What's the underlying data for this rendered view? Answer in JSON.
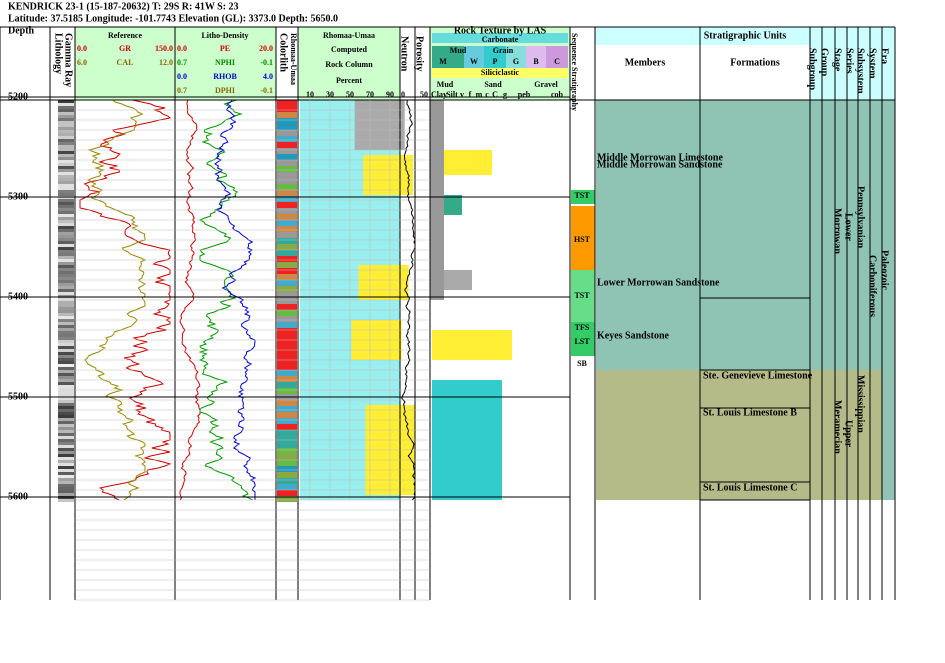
{
  "header": {
    "well": "KENDRICK 23-1 (15-187-20632) T: 29S R: 41W S: 23",
    "location": "Latitude: 37.5185 Longitude: -101.7743 Elevation (GL): 3373.0 Depth: 5650.0"
  },
  "depth_track": {
    "title": "Depth",
    "ticks": [
      5200,
      5300,
      5400,
      5500,
      5600
    ]
  },
  "lithology": {
    "title": "Lithology",
    "gamma": "Gamma Ray"
  },
  "reference": {
    "title": "Reference",
    "curves": [
      {
        "name": "GR",
        "min": "0.0",
        "max": "150.0"
      },
      {
        "name": "CAL",
        "min": "6.0",
        "max": "12.0"
      }
    ]
  },
  "litho_density": {
    "title": "Litho-Density",
    "curves": [
      {
        "name": "PE",
        "min": "0.0",
        "max": "20.0"
      },
      {
        "name": "NPHI",
        "min": "0.7",
        "max": "-0.1"
      },
      {
        "name": "RHOB",
        "min": "0.0",
        "max": "4.0"
      },
      {
        "name": "DPHI",
        "min": "0.7",
        "max": "-0.1"
      }
    ]
  },
  "colorlith": {
    "title": "Colorlith",
    "subtitle": "Rhomaa-Umaa"
  },
  "rhomaa": {
    "title": "Rhomaa-Umaa",
    "lines": [
      "Computed",
      "Rock Column",
      "Percent"
    ],
    "ticks": [
      10,
      30,
      50,
      70,
      90
    ]
  },
  "neutron": {
    "title": "Neutron",
    "min": 0,
    "max": 50
  },
  "porosity": {
    "title": "Porosity"
  },
  "rock_texture": {
    "title": "Rock Texture by LAS",
    "carbonate": "Carbonate",
    "carb_groups": [
      "Mud",
      "Grain"
    ],
    "carb_classes": [
      "M",
      "W",
      "P",
      "G",
      "B",
      "C"
    ],
    "siliciclastic": "Siliciclastic",
    "sil_groups": [
      "Mud",
      "Sand",
      "Gravel"
    ],
    "sil_classes": [
      "Clay",
      "Silt",
      "v",
      "f",
      "m",
      "c",
      "C",
      "g",
      "peb",
      "cob"
    ]
  },
  "sequence": {
    "title": "Sequence Stratigraphy",
    "labels": [
      "TST",
      "HST",
      "TST",
      "TFS",
      "LST",
      "SB"
    ]
  },
  "strat": {
    "title": "Stratigraphic Units",
    "columns": [
      "Members",
      "Formations",
      "Subgroup",
      "Group",
      "Stage",
      "Series",
      "Subsystem",
      "System",
      "Era"
    ],
    "members": [
      "Middle Morrowan Limestone",
      "Middle Morrowan Sandstone",
      "Lower Morrowan Sandstone",
      "Keyes Sandstone"
    ],
    "formations": [
      "Ste. Genevieve Limestone",
      "St. Louis Limestone B",
      "St. Louis Limestone C"
    ],
    "stage": [
      "Morrowan",
      "Meramecian"
    ],
    "series": [
      "Lower",
      "Upper"
    ],
    "subsystem": [
      "Pennsylvanian",
      "Mississippian"
    ],
    "system": [
      "Carboniferous"
    ],
    "era": [
      "Paleozoic"
    ]
  }
}
